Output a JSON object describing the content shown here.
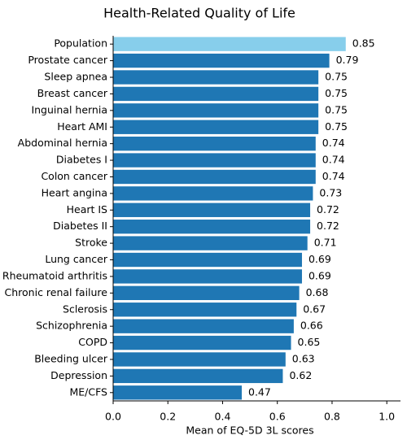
{
  "chart_data": {
    "type": "barh",
    "title": "Health-Related Quality of Life",
    "xlabel": "Mean of EQ-5D 3L scores",
    "categories": [
      "Population",
      "Prostate cancer",
      "Sleep apnea",
      "Breast cancer",
      "Inguinal hernia",
      "Heart AMI",
      "Abdominal hernia",
      "Diabetes I",
      "Colon cancer",
      "Heart angina",
      "Heart IS",
      "Diabetes II",
      "Stroke",
      "Lung cancer",
      "Rheumatoid arthritis",
      "Chronic renal failure",
      "Sclerosis",
      "Schizophrenia",
      "COPD",
      "Bleeding ulcer",
      "Depression",
      "ME/CFS"
    ],
    "values": [
      0.85,
      0.79,
      0.75,
      0.75,
      0.75,
      0.75,
      0.74,
      0.74,
      0.74,
      0.73,
      0.72,
      0.72,
      0.71,
      0.69,
      0.69,
      0.68,
      0.67,
      0.66,
      0.65,
      0.63,
      0.62,
      0.47
    ],
    "colors": [
      "#87ceeb",
      "#1f77b4",
      "#1f77b4",
      "#1f77b4",
      "#1f77b4",
      "#1f77b4",
      "#1f77b4",
      "#1f77b4",
      "#1f77b4",
      "#1f77b4",
      "#1f77b4",
      "#1f77b4",
      "#1f77b4",
      "#1f77b4",
      "#1f77b4",
      "#1f77b4",
      "#1f77b4",
      "#1f77b4",
      "#1f77b4",
      "#1f77b4",
      "#1f77b4",
      "#1f77b4"
    ],
    "xlim": [
      0,
      1.05
    ],
    "xticks": [
      {
        "value": 0,
        "label": "0.0"
      },
      0.2,
      0.4,
      0.6,
      0.8,
      {
        "value": 1,
        "label": "1.0"
      }
    ]
  }
}
